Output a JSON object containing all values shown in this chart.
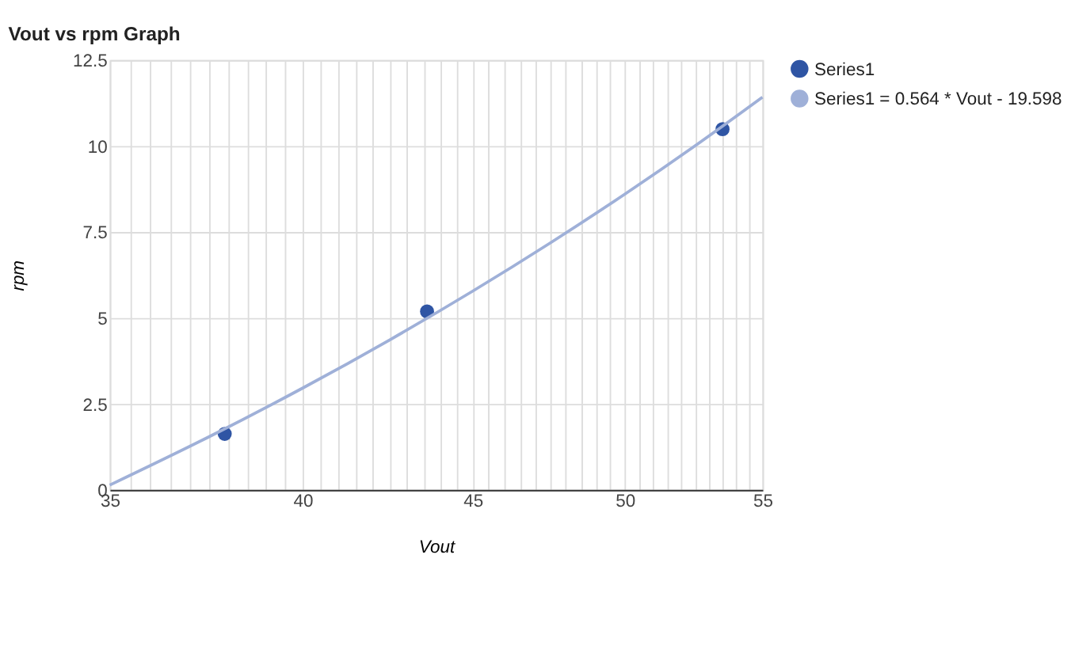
{
  "chart_data": {
    "type": "scatter",
    "title": "Vout vs rpm Graph",
    "xlabel": "Vout",
    "ylabel": "rpm",
    "log": "x",
    "xlim": [
      35,
      55
    ],
    "ylim": [
      0,
      12.5
    ],
    "xticks": [
      35,
      {
        "value": 35.5,
        "label": null
      },
      {
        "value": 36,
        "label": null
      },
      {
        "value": 36.5,
        "label": null
      },
      {
        "value": 37,
        "label": null
      },
      {
        "value": 37.5,
        "label": null
      },
      {
        "value": 38,
        "label": null
      },
      {
        "value": 38.5,
        "label": null
      },
      {
        "value": 39,
        "label": null
      },
      {
        "value": 39.5,
        "label": null
      },
      40,
      {
        "value": 40.5,
        "label": null
      },
      {
        "value": 41,
        "label": null
      },
      {
        "value": 41.5,
        "label": null
      },
      {
        "value": 42,
        "label": null
      },
      {
        "value": 42.5,
        "label": null
      },
      {
        "value": 43,
        "label": null
      },
      {
        "value": 43.5,
        "label": null
      },
      {
        "value": 44,
        "label": null
      },
      {
        "value": 44.5,
        "label": null
      },
      45,
      {
        "value": 45.5,
        "label": null
      },
      {
        "value": 46,
        "label": null
      },
      {
        "value": 46.5,
        "label": null
      },
      {
        "value": 47,
        "label": null
      },
      {
        "value": 47.5,
        "label": null
      },
      {
        "value": 48,
        "label": null
      },
      {
        "value": 48.5,
        "label": null
      },
      {
        "value": 49,
        "label": null
      },
      {
        "value": 49.5,
        "label": null
      },
      50,
      {
        "value": 50.5,
        "label": null
      },
      {
        "value": 51,
        "label": null
      },
      {
        "value": 51.5,
        "label": null
      },
      {
        "value": 52,
        "label": null
      },
      {
        "value": 52.5,
        "label": null
      },
      {
        "value": 53,
        "label": null
      },
      {
        "value": 53.5,
        "label": null
      },
      {
        "value": 54,
        "label": null
      },
      {
        "value": 54.5,
        "label": null
      },
      55
    ],
    "yticks": [
      0,
      2.5,
      5,
      7.5,
      10,
      12.5
    ],
    "grid": true,
    "legend": "right",
    "series": [
      {
        "name": "Series1",
        "marker": "circle",
        "color": "#2f55a4",
        "x": [
          37.9,
          43.6,
          53.5
        ],
        "values": [
          1.63,
          5.19,
          10.49
        ]
      },
      {
        "name": "Series1 = 0.564 * Vout - 19.598",
        "type": "line",
        "marker": "none",
        "line_style": "solid",
        "color": "#9fb0d8",
        "x": [
          35,
          37.5,
          40,
          42.5,
          45,
          47.5,
          50,
          52.5,
          55
        ],
        "values": [
          0.14,
          1.55,
          2.96,
          4.37,
          5.78,
          7.19,
          8.6,
          10.01,
          11.42
        ]
      }
    ]
  }
}
